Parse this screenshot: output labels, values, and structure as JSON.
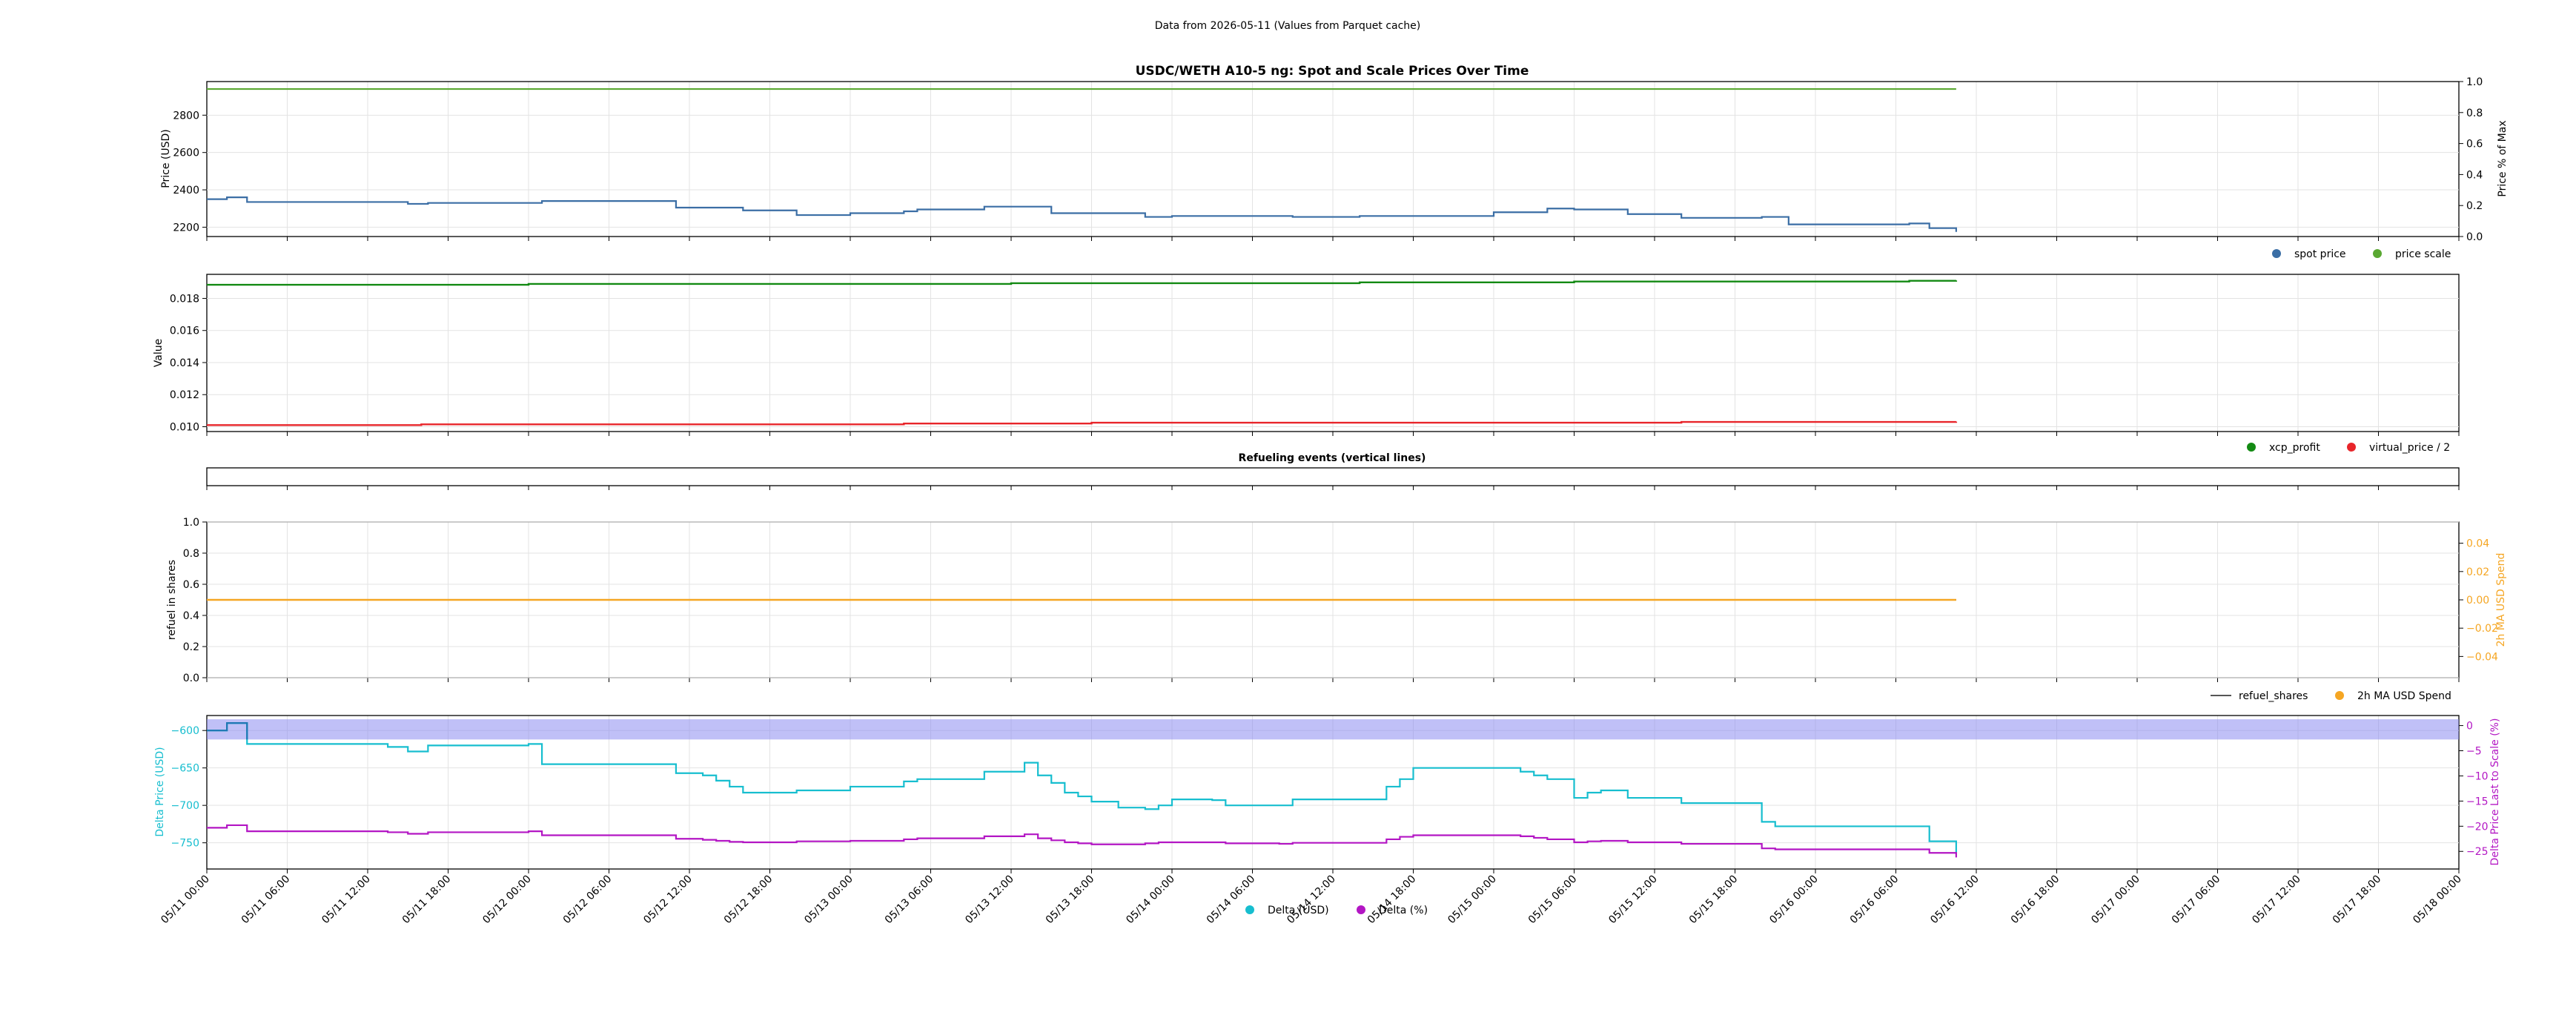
{
  "figure": {
    "suptitle": "Data from 2026-05-11 (Values from Parquet cache)",
    "x_ticks": [
      "05/11 00:00",
      "05/11 06:00",
      "05/11 12:00",
      "05/11 18:00",
      "05/12 00:00",
      "05/12 06:00",
      "05/12 12:00",
      "05/12 18:00",
      "05/13 00:00",
      "05/13 06:00",
      "05/13 12:00",
      "05/13 18:00",
      "05/14 00:00",
      "05/14 06:00",
      "05/14 12:00",
      "05/14 18:00",
      "05/15 00:00",
      "05/15 06:00",
      "05/15 12:00",
      "05/15 18:00",
      "05/16 00:00",
      "05/16 06:00",
      "05/16 12:00",
      "05/16 18:00",
      "05/17 00:00",
      "05/17 06:00",
      "05/17 12:00",
      "05/17 18:00",
      "05/18 00:00"
    ],
    "x_range_hours": [
      0,
      168
    ],
    "data_end_hour": 130.5
  },
  "colors": {
    "spot": "#3b6ea5",
    "scale": "#5aa832",
    "xcp": "#138a13",
    "virtual": "#e8252a",
    "refuel": "#555555",
    "spend": "#f5a623",
    "delta_usd": "#17becf",
    "delta_pct": "#b316c4",
    "band": "#8c8cf0",
    "line_blue": "#1f77b4"
  },
  "chart_data": [
    {
      "type": "line",
      "title": "USDC/WETH A10-5 ng: Spot and Scale Prices Over Time",
      "ylabel": "Price (USD)",
      "y2label": "Price % of Max",
      "ylim": [
        2150,
        2980
      ],
      "y2lim": [
        0,
        1
      ],
      "yticks": [
        2200,
        2400,
        2600,
        2800
      ],
      "y2ticks": [
        "0.0",
        "0.2",
        "0.4",
        "0.6",
        "0.8",
        "1.0"
      ],
      "legend": [
        "spot price",
        "price scale"
      ],
      "legend_position": "bottom-right",
      "grid": true,
      "series": [
        {
          "name": "spot price",
          "x": [
            0,
            1.5,
            3,
            12.5,
            15,
            16.5,
            24,
            25,
            35,
            40,
            44,
            48,
            52,
            53,
            58,
            63,
            70,
            72,
            74,
            81,
            86,
            90,
            96,
            100,
            102,
            106,
            110,
            116,
            118,
            127,
            128.5,
            130.5
          ],
          "y": [
            2350,
            2360,
            2335,
            2335,
            2325,
            2330,
            2330,
            2340,
            2305,
            2290,
            2265,
            2275,
            2285,
            2295,
            2310,
            2275,
            2255,
            2260,
            2260,
            2255,
            2260,
            2260,
            2280,
            2300,
            2295,
            2270,
            2250,
            2255,
            2215,
            2220,
            2195,
            2175
          ]
        },
        {
          "name": "price scale",
          "x": [
            0,
            130.5
          ],
          "y": [
            2940,
            2940
          ]
        }
      ]
    },
    {
      "type": "line",
      "title": "",
      "ylabel": "Value",
      "ylim": [
        0.0097,
        0.0195
      ],
      "yticks": [
        "0.010",
        "0.012",
        "0.014",
        "0.016",
        "0.018"
      ],
      "legend": [
        "xcp_profit",
        "virtual_price / 2"
      ],
      "legend_position": "bottom-right",
      "grid": true,
      "series": [
        {
          "name": "xcp_profit",
          "x": [
            0,
            24,
            60,
            86,
            102,
            127,
            130.5
          ],
          "y": [
            0.01885,
            0.0189,
            0.01895,
            0.019,
            0.01905,
            0.0191,
            0.01912
          ]
        },
        {
          "name": "virtual_price / 2",
          "x": [
            0,
            16,
            52,
            66,
            110,
            130.5
          ],
          "y": [
            0.0101,
            0.01015,
            0.0102,
            0.01025,
            0.0103,
            0.01032
          ]
        }
      ]
    },
    {
      "type": "line",
      "title": "Refueling events (vertical lines)",
      "series": []
    },
    {
      "type": "line",
      "title": "",
      "ylabel": "refuel in shares",
      "y2label": "2h MA USD Spend",
      "ylim": [
        0,
        1
      ],
      "y2lim": [
        -0.055,
        0.055
      ],
      "yticks": [
        "0.0",
        "0.2",
        "0.4",
        "0.6",
        "0.8",
        "1.0"
      ],
      "y2ticks": [
        "-0.04",
        "-0.02",
        "0.00",
        "0.02",
        "0.04"
      ],
      "legend": [
        "refuel_shares",
        "2h MA USD Spend"
      ],
      "legend_position": "bottom-right",
      "grid": true,
      "series": [
        {
          "name": "refuel_shares",
          "x": [
            0,
            130.5
          ],
          "y": [
            0.5,
            0.5
          ]
        },
        {
          "name": "2h MA USD Spend",
          "x": [
            0,
            130.5
          ],
          "y": [
            0,
            0
          ]
        }
      ]
    },
    {
      "type": "line",
      "title": "",
      "ylabel": "Delta Price (USD)",
      "y2label": "Delta Price Last to Scale (%)",
      "ylim": [
        -785,
        -580
      ],
      "y2lim": [
        -28.5,
        2
      ],
      "yticks": [
        -750,
        -700,
        -650,
        -600
      ],
      "y2ticks": [
        -25,
        -20,
        -15,
        -10,
        -5,
        0
      ],
      "legend": [
        "Delta (USD)",
        "Delta (%)"
      ],
      "legend_position": "bottom-center",
      "grid": true,
      "band": [
        -585,
        -612
      ],
      "series": [
        {
          "name": "Delta (USD)",
          "x": [
            0,
            1.5,
            3,
            12.5,
            13.5,
            15,
            16.5,
            24,
            25,
            35,
            37,
            38,
            39,
            40,
            44,
            48,
            52,
            53,
            58,
            61,
            62,
            63,
            64,
            65,
            66,
            68,
            70,
            71,
            72,
            74,
            75,
            76,
            80,
            81,
            86,
            88,
            89,
            90,
            96,
            98,
            99,
            100,
            102,
            103,
            104,
            106,
            110,
            115,
            116,
            117,
            118,
            127,
            128.5,
            130.5
          ],
          "y": [
            -600,
            -590,
            -618,
            -618,
            -622,
            -628,
            -620,
            -618,
            -645,
            -657,
            -660,
            -667,
            -675,
            -683,
            -680,
            -675,
            -668,
            -665,
            -655,
            -643,
            -660,
            -670,
            -683,
            -688,
            -695,
            -703,
            -705,
            -700,
            -692,
            -692,
            -693,
            -700,
            -700,
            -692,
            -692,
            -675,
            -665,
            -650,
            -650,
            -655,
            -660,
            -665,
            -690,
            -683,
            -680,
            -690,
            -697,
            -697,
            -722,
            -728,
            -728,
            -728,
            -748,
            -765
          ]
        },
        {
          "name": "Delta (%)",
          "x": [
            0,
            1.5,
            3,
            12.5,
            13.5,
            15,
            16.5,
            24,
            25,
            35,
            37,
            38,
            39,
            40,
            44,
            48,
            52,
            53,
            58,
            61,
            62,
            63,
            64,
            65,
            66,
            68,
            70,
            71,
            72,
            74,
            75,
            76,
            80,
            81,
            86,
            88,
            89,
            90,
            96,
            98,
            99,
            100,
            102,
            103,
            104,
            106,
            110,
            115,
            116,
            117,
            118,
            127,
            128.5,
            130.5
          ],
          "y": [
            -20.3,
            -19.8,
            -21.0,
            -21.0,
            -21.2,
            -21.5,
            -21.2,
            -21.0,
            -21.8,
            -22.5,
            -22.7,
            -22.9,
            -23.1,
            -23.2,
            -23.0,
            -22.9,
            -22.6,
            -22.4,
            -22.0,
            -21.6,
            -22.4,
            -22.8,
            -23.2,
            -23.4,
            -23.6,
            -23.6,
            -23.4,
            -23.2,
            -23.2,
            -23.2,
            -23.2,
            -23.4,
            -23.5,
            -23.3,
            -23.3,
            -22.6,
            -22.1,
            -21.8,
            -21.8,
            -22.0,
            -22.3,
            -22.6,
            -23.2,
            -23.0,
            -22.9,
            -23.2,
            -23.5,
            -23.5,
            -24.4,
            -24.6,
            -24.6,
            -24.6,
            -25.3,
            -26.2
          ]
        }
      ]
    }
  ]
}
